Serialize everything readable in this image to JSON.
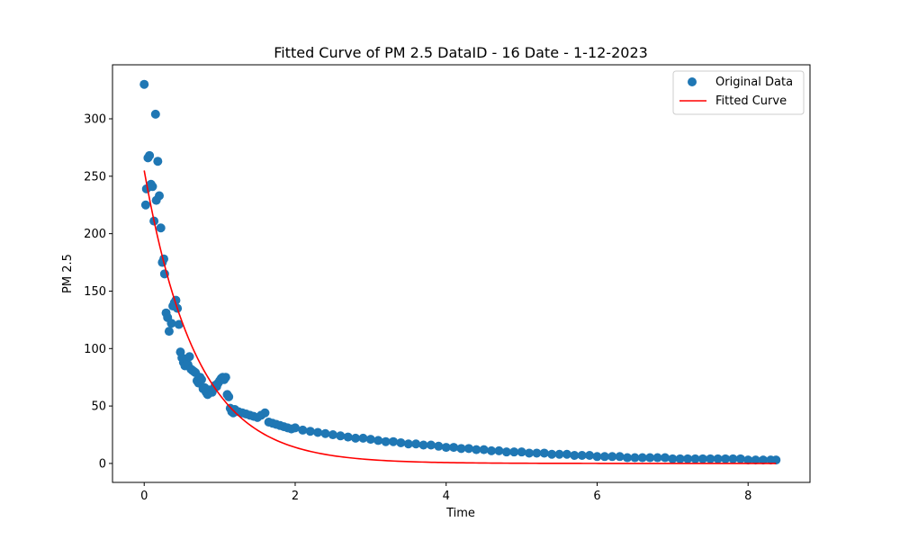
{
  "chart_data": {
    "type": "scatter",
    "title": "Fitted Curve of PM 2.5 DataID - 16 Date - 1-12-2023",
    "xlabel": "Time",
    "ylabel": "PM 2.5",
    "xlim": [
      -0.42,
      8.82
    ],
    "ylim": [
      -16.5,
      347
    ],
    "xticks": [
      0,
      2,
      4,
      6,
      8
    ],
    "yticks": [
      0,
      50,
      100,
      150,
      200,
      250,
      300
    ],
    "grid": false,
    "legend_position": "top-right",
    "series": [
      {
        "name": "Original Data",
        "kind": "scatter",
        "color": "#1f77b4",
        "x": [
          0.0,
          0.02,
          0.03,
          0.05,
          0.07,
          0.09,
          0.11,
          0.13,
          0.15,
          0.16,
          0.18,
          0.2,
          0.22,
          0.24,
          0.26,
          0.27,
          0.29,
          0.31,
          0.33,
          0.36,
          0.38,
          0.4,
          0.42,
          0.44,
          0.46,
          0.48,
          0.5,
          0.52,
          0.54,
          0.56,
          0.58,
          0.6,
          0.62,
          0.64,
          0.66,
          0.68,
          0.7,
          0.72,
          0.74,
          0.76,
          0.78,
          0.8,
          0.82,
          0.84,
          0.86,
          0.88,
          0.9,
          0.92,
          0.94,
          0.96,
          0.98,
          1.0,
          1.02,
          1.04,
          1.06,
          1.08,
          1.1,
          1.12,
          1.14,
          1.16,
          1.18,
          1.2,
          1.25,
          1.3,
          1.35,
          1.4,
          1.45,
          1.5,
          1.55,
          1.6,
          1.65,
          1.7,
          1.75,
          1.8,
          1.85,
          1.9,
          1.95,
          2.0,
          2.1,
          2.2,
          2.3,
          2.4,
          2.5,
          2.6,
          2.7,
          2.8,
          2.9,
          3.0,
          3.1,
          3.2,
          3.3,
          3.4,
          3.5,
          3.6,
          3.7,
          3.8,
          3.9,
          4.0,
          4.1,
          4.2,
          4.3,
          4.4,
          4.5,
          4.6,
          4.7,
          4.8,
          4.9,
          5.0,
          5.1,
          5.2,
          5.3,
          5.4,
          5.5,
          5.6,
          5.7,
          5.8,
          5.9,
          6.0,
          6.1,
          6.2,
          6.3,
          6.4,
          6.5,
          6.6,
          6.7,
          6.8,
          6.9,
          7.0,
          7.1,
          7.2,
          7.3,
          7.4,
          7.5,
          7.6,
          7.7,
          7.8,
          7.9,
          8.0,
          8.1,
          8.2,
          8.3,
          8.37
        ],
        "y": [
          330,
          225,
          239,
          266,
          268,
          243,
          241,
          211,
          304,
          229,
          263,
          233,
          205,
          175,
          178,
          165,
          131,
          127,
          115,
          122,
          137,
          140,
          142,
          135,
          121,
          97,
          92,
          88,
          85,
          91,
          86,
          93,
          82,
          81,
          80,
          79,
          72,
          70,
          75,
          73,
          65,
          66,
          62,
          60,
          64,
          63,
          62,
          65,
          68,
          67,
          70,
          72,
          74,
          75,
          73,
          75,
          60,
          58,
          48,
          45,
          44,
          47,
          45,
          44,
          43,
          42,
          41,
          40,
          42,
          44,
          36,
          35,
          34,
          33,
          32,
          31,
          30,
          31,
          29,
          28,
          27,
          26,
          25,
          24,
          23,
          22,
          22,
          21,
          20,
          19,
          19,
          18,
          17,
          17,
          16,
          16,
          15,
          14,
          14,
          13,
          13,
          12,
          12,
          11,
          11,
          10,
          10,
          10,
          9,
          9,
          9,
          8,
          8,
          8,
          7,
          7,
          7,
          6,
          6,
          6,
          6,
          5,
          5,
          5,
          5,
          5,
          5,
          4,
          4,
          4,
          4,
          4,
          4,
          4,
          4,
          4,
          4,
          3,
          3,
          3,
          3,
          3
        ]
      },
      {
        "name": "Fitted Curve",
        "kind": "line",
        "color": "#ff0000",
        "a": 255,
        "k": 1.45,
        "x_range": [
          0,
          8.37
        ]
      }
    ]
  }
}
